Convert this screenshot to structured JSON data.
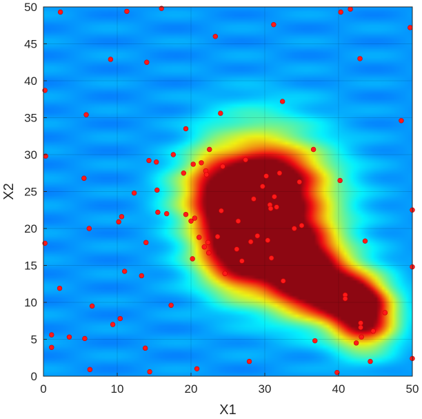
{
  "chart_data": {
    "type": "heatmap",
    "title": "",
    "xlabel": "X1",
    "ylabel": "X2",
    "xlim": [
      0,
      50
    ],
    "ylim": [
      0,
      50
    ],
    "xticks": [
      "0",
      "10",
      "20",
      "30",
      "40",
      "50"
    ],
    "yticks": [
      "0",
      "5",
      "10",
      "15",
      "20",
      "25",
      "30",
      "35",
      "40",
      "45",
      "50"
    ],
    "grid": true,
    "colormap": "jet",
    "colors": {
      "background": "#3d57e6",
      "point": "#ff1a1a",
      "axis": "#262626"
    },
    "points": [
      [
        0.2,
        38.7
      ],
      [
        0.3,
        29.8
      ],
      [
        0.2,
        18.0
      ],
      [
        1.1,
        5.6
      ],
      [
        1.1,
        3.9
      ],
      [
        2.2,
        11.9
      ],
      [
        2.3,
        49.3
      ],
      [
        3.5,
        5.3
      ],
      [
        5.5,
        26.8
      ],
      [
        5.6,
        5.1
      ],
      [
        5.8,
        35.4
      ],
      [
        6.2,
        20.0
      ],
      [
        6.3,
        0.9
      ],
      [
        6.6,
        9.5
      ],
      [
        9.1,
        42.9
      ],
      [
        9.4,
        7.0
      ],
      [
        10.2,
        20.9
      ],
      [
        10.4,
        7.8
      ],
      [
        10.6,
        21.6
      ],
      [
        11.0,
        14.2
      ],
      [
        11.3,
        49.4
      ],
      [
        12.3,
        24.8
      ],
      [
        13.3,
        13.6
      ],
      [
        13.8,
        3.8
      ],
      [
        13.9,
        18.1
      ],
      [
        14.0,
        42.5
      ],
      [
        14.3,
        29.2
      ],
      [
        14.4,
        0.6
      ],
      [
        15.3,
        29.0
      ],
      [
        15.4,
        25.2
      ],
      [
        15.5,
        22.2
      ],
      [
        16.0,
        49.8
      ],
      [
        16.7,
        22.0
      ],
      [
        17.3,
        9.6
      ],
      [
        17.6,
        30.0
      ],
      [
        19.0,
        27.5
      ],
      [
        19.3,
        21.9
      ],
      [
        19.3,
        33.5
      ],
      [
        20.0,
        21.0
      ],
      [
        20.2,
        15.9
      ],
      [
        20.3,
        28.7
      ],
      [
        20.5,
        21.4
      ],
      [
        20.8,
        1.0
      ],
      [
        21.1,
        18.8
      ],
      [
        21.4,
        28.9
      ],
      [
        21.8,
        17.5
      ],
      [
        22.0,
        27.8
      ],
      [
        22.1,
        27.3
      ],
      [
        22.3,
        18.1
      ],
      [
        22.4,
        16.7
      ],
      [
        22.5,
        30.7
      ],
      [
        23.3,
        46.0
      ],
      [
        23.6,
        18.9
      ],
      [
        24.0,
        35.6
      ],
      [
        24.1,
        22.4
      ],
      [
        24.3,
        28.4
      ],
      [
        24.6,
        13.9
      ],
      [
        26.2,
        17.2
      ],
      [
        26.4,
        21.0
      ],
      [
        26.9,
        15.6
      ],
      [
        27.4,
        29.3
      ],
      [
        27.9,
        2.0
      ],
      [
        28.1,
        18.2
      ],
      [
        28.5,
        24.0
      ],
      [
        29.0,
        19.0
      ],
      [
        29.7,
        25.7
      ],
      [
        30.2,
        27.1
      ],
      [
        30.4,
        18.4
      ],
      [
        30.7,
        23.2
      ],
      [
        30.8,
        22.7
      ],
      [
        30.9,
        16.0
      ],
      [
        31.2,
        47.6
      ],
      [
        31.3,
        24.3
      ],
      [
        31.6,
        22.9
      ],
      [
        32.0,
        27.5
      ],
      [
        32.4,
        37.2
      ],
      [
        32.5,
        12.9
      ],
      [
        34.0,
        20.0
      ],
      [
        34.7,
        26.3
      ],
      [
        35.0,
        20.4
      ],
      [
        36.6,
        30.7
      ],
      [
        36.8,
        4.8
      ],
      [
        39.8,
        0.5
      ],
      [
        40.2,
        26.5
      ],
      [
        40.3,
        49.3
      ],
      [
        40.9,
        11.0
      ],
      [
        40.9,
        10.5
      ],
      [
        41.6,
        49.7
      ],
      [
        42.4,
        4.5
      ],
      [
        42.9,
        43.0
      ],
      [
        43.0,
        7.2
      ],
      [
        43.0,
        6.6
      ],
      [
        43.1,
        5.3
      ],
      [
        43.6,
        18.3
      ],
      [
        44.3,
        2.0
      ],
      [
        44.7,
        6.1
      ],
      [
        46.3,
        8.6
      ],
      [
        48.5,
        34.6
      ],
      [
        49.7,
        47.2
      ],
      [
        50.0,
        22.5
      ],
      [
        50.0,
        14.8
      ],
      [
        50.0,
        2.4
      ]
    ],
    "hotspots": [
      {
        "x": 30.5,
        "y": 22.5,
        "sx": 5.8,
        "sy": 6.3,
        "v": 0.82
      },
      {
        "x": 27.0,
        "y": 21.5,
        "sx": 3.8,
        "sy": 4.5,
        "v": 0.38
      },
      {
        "x": 30.5,
        "y": 27.5,
        "sx": 4.8,
        "sy": 2.4,
        "v": 0.25
      },
      {
        "x": 25.5,
        "y": 16.0,
        "sx": 3.5,
        "sy": 2.5,
        "v": 0.3
      },
      {
        "x": 34.5,
        "y": 15.0,
        "sx": 3.8,
        "sy": 3.5,
        "v": 0.55
      },
      {
        "x": 38.5,
        "y": 11.5,
        "sx": 4.2,
        "sy": 3.0,
        "v": 0.55
      },
      {
        "x": 43.5,
        "y": 8.0,
        "sx": 3.0,
        "sy": 3.0,
        "v": 0.72
      },
      {
        "x": 41.0,
        "y": 11.0,
        "sx": 2.5,
        "sy": 1.4,
        "v": 0.35
      },
      {
        "x": 22.5,
        "y": 25.0,
        "sx": 2.2,
        "sy": 4.5,
        "v": 0.25
      },
      {
        "x": 18.5,
        "y": 25.0,
        "sx": 2.5,
        "sy": 3.0,
        "v": 0.12
      },
      {
        "x": 26.0,
        "y": 12.0,
        "sx": 2.5,
        "sy": 2.0,
        "v": 0.1
      },
      {
        "x": 28.0,
        "y": 34.0,
        "sx": 4.0,
        "sy": 2.5,
        "v": 0.06
      }
    ]
  }
}
